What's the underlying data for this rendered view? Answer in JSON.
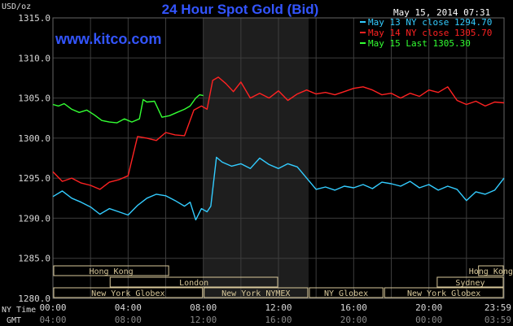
{
  "chart_data": {
    "type": "line",
    "title": "24 Hour Spot Gold (Bid)",
    "brand": "www.kitco.com",
    "date_label": "May 15, 2014 07:31",
    "y_unit": "USD/oz",
    "ylim": [
      1280,
      1315
    ],
    "y_ticks": [
      "1315.0",
      "1310.0",
      "1305.0",
      "1300.0",
      "1295.0",
      "1290.0",
      "1285.0",
      "1280.0"
    ],
    "x_axis_label_ny": "NY Time",
    "x_axis_label_gmt": "GMT",
    "x_ticks_ny": [
      "00:00",
      "04:00",
      "08:00",
      "12:00",
      "16:00",
      "20:00",
      "23:59"
    ],
    "x_ticks_gmt": [
      "04:00",
      "08:00",
      "12:00",
      "16:00",
      "20:00",
      "00:00",
      "03:59"
    ],
    "legend": [
      {
        "label": "May 13 NY close 1294.70",
        "color": "#33ccff"
      },
      {
        "label": "May 14 NY close 1305.70",
        "color": "#ff2222"
      },
      {
        "label": "May 15 Last 1305.30",
        "color": "#33ff33"
      }
    ],
    "colors": {
      "grid": "#3d3d3d",
      "axis_text": "#d8d8d8",
      "title": "#3355ff",
      "highlight": "#1e1e1e",
      "session_box": "#d8c89a"
    },
    "highlight_hours": [
      8.0,
      13.6
    ],
    "sessions": [
      {
        "label": "Hong Kong",
        "row": 0,
        "start": 0.0,
        "end": 6.2
      },
      {
        "label": "Hong Kong",
        "row": 0,
        "start": 22.6,
        "end": 24.0
      },
      {
        "label": "London",
        "row": 1,
        "start": 3.0,
        "end": 12.0
      },
      {
        "label": "Sydney",
        "row": 1,
        "start": 20.4,
        "end": 24.0
      },
      {
        "label": "New York Globex",
        "row": 2,
        "start": 0.0,
        "end": 8.0
      },
      {
        "label": "New York NYMEX",
        "row": 2,
        "start": 8.0,
        "end": 13.6
      },
      {
        "label": "NY Globex",
        "row": 2,
        "start": 13.6,
        "end": 17.6
      },
      {
        "label": "New York Globex",
        "row": 2,
        "start": 17.6,
        "end": 24.0
      }
    ],
    "series": [
      {
        "name": "May 13 NY close 1294.70",
        "color": "#33ccff",
        "x": [
          0,
          0.5,
          1.0,
          1.5,
          2.0,
          2.5,
          3.0,
          3.5,
          4.0,
          4.5,
          5.0,
          5.5,
          6.0,
          6.5,
          7.0,
          7.3,
          7.6,
          7.9,
          8.2,
          8.4,
          8.7,
          9.0,
          9.5,
          10.0,
          10.5,
          11.0,
          11.5,
          12.0,
          12.5,
          13.0,
          13.5,
          14.0,
          14.5,
          15.0,
          15.5,
          16.0,
          16.5,
          17.0,
          17.5,
          18.0,
          18.5,
          19.0,
          19.5,
          20.0,
          20.5,
          21.0,
          21.5,
          22.0,
          22.5,
          23.0,
          23.5,
          24.0
        ],
        "y": [
          1292.7,
          1293.4,
          1292.5,
          1292.0,
          1291.4,
          1290.5,
          1291.2,
          1290.8,
          1290.4,
          1291.6,
          1292.5,
          1293.0,
          1292.8,
          1292.2,
          1291.5,
          1292.0,
          1289.8,
          1291.2,
          1290.8,
          1291.5,
          1297.6,
          1297.0,
          1296.5,
          1296.8,
          1296.2,
          1297.5,
          1296.7,
          1296.2,
          1296.8,
          1296.4,
          1295.0,
          1293.6,
          1293.9,
          1293.5,
          1294.0,
          1293.8,
          1294.2,
          1293.7,
          1294.5,
          1294.3,
          1294.0,
          1294.6,
          1293.8,
          1294.2,
          1293.5,
          1294.0,
          1293.6,
          1292.2,
          1293.3,
          1293.0,
          1293.5,
          1295.0
        ]
      },
      {
        "name": "May 14 NY close 1305.70",
        "color": "#ff2222",
        "x": [
          0,
          0.5,
          1.0,
          1.5,
          2.0,
          2.5,
          3.0,
          3.5,
          4.0,
          4.5,
          5.0,
          5.5,
          6.0,
          6.5,
          7.0,
          7.5,
          7.9,
          8.2,
          8.5,
          8.8,
          9.2,
          9.6,
          10.0,
          10.5,
          11.0,
          11.5,
          12.0,
          12.5,
          13.0,
          13.5,
          14.0,
          14.5,
          15.0,
          15.5,
          16.0,
          16.5,
          17.0,
          17.5,
          18.0,
          18.5,
          19.0,
          19.5,
          20.0,
          20.5,
          21.0,
          21.5,
          22.0,
          22.5,
          23.0,
          23.5,
          24.0
        ],
        "y": [
          1295.8,
          1294.6,
          1295.0,
          1294.4,
          1294.1,
          1293.6,
          1294.5,
          1294.8,
          1295.3,
          1300.2,
          1300.0,
          1299.7,
          1300.7,
          1300.4,
          1300.3,
          1303.5,
          1304.0,
          1303.6,
          1307.2,
          1307.6,
          1306.8,
          1305.8,
          1307.0,
          1305.0,
          1305.6,
          1305.0,
          1305.9,
          1304.7,
          1305.5,
          1306.0,
          1305.5,
          1305.7,
          1305.4,
          1305.8,
          1306.2,
          1306.4,
          1306.0,
          1305.4,
          1305.6,
          1305.0,
          1305.6,
          1305.2,
          1306.0,
          1305.7,
          1306.4,
          1304.7,
          1304.2,
          1304.6,
          1304.0,
          1304.5,
          1304.4
        ]
      },
      {
        "name": "May 15 Last 1305.30",
        "color": "#33ff33",
        "x": [
          0,
          0.3,
          0.6,
          1.0,
          1.4,
          1.8,
          2.2,
          2.6,
          3.0,
          3.4,
          3.8,
          4.2,
          4.6,
          4.8,
          5.0,
          5.4,
          5.8,
          6.2,
          6.6,
          7.0,
          7.3,
          7.6,
          7.8,
          8.0
        ],
        "y": [
          1304.2,
          1304.0,
          1304.3,
          1303.6,
          1303.2,
          1303.5,
          1302.9,
          1302.2,
          1302.0,
          1301.9,
          1302.4,
          1302.0,
          1302.4,
          1304.8,
          1304.5,
          1304.6,
          1302.6,
          1302.8,
          1303.2,
          1303.6,
          1304.0,
          1305.0,
          1305.4,
          1305.3
        ]
      }
    ]
  }
}
